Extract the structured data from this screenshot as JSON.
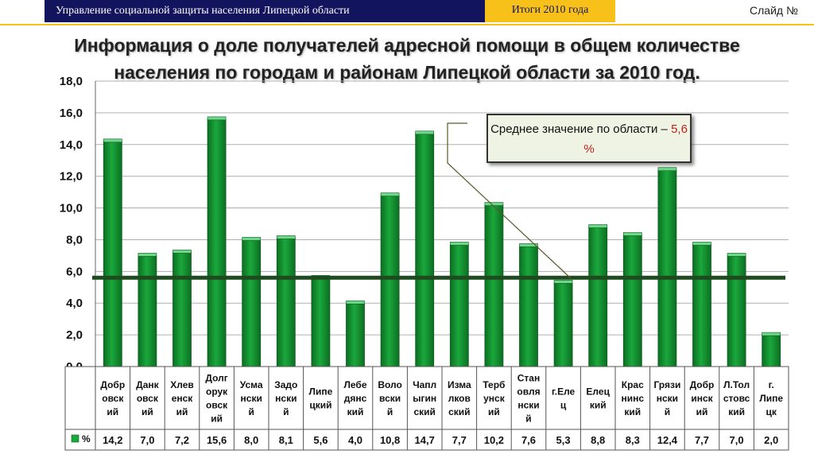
{
  "header": {
    "organization": "Управление социальной защиты населения Липецкой области",
    "period": "Итоги 2010 года",
    "slide_label": "Слайд №"
  },
  "title": "Информация о доле получателей адресной помощи в общем количестве населения по городам и районам Липецкой области за 2010 год.",
  "callout": {
    "text": "Среднее значение по области –",
    "value": "5,6 %"
  },
  "colors": {
    "bar": "#1aa83c",
    "bar_dark": "#0c6e22",
    "average_line": "#1f4a20",
    "header_bg": "#13145e",
    "header_accent": "#f7c11a",
    "callout_value": "#c0201c"
  },
  "chart_data": {
    "type": "bar",
    "categories": [
      "Добровский",
      "Данковский",
      "Хлевенский",
      "Долгоруковский",
      "Усманский",
      "Задонский",
      "Липецкий",
      "Лебедянский",
      "Воловский",
      "Чаплыгинский",
      "Измалковский",
      "Тербунский",
      "Становлянский",
      "г.Елец",
      "Елецкий",
      "Краснинский",
      "Грязинский",
      "Добринский",
      "Л.Толстовский",
      "г. Липецк"
    ],
    "category_display": [
      "Добр\nовск\nий",
      "Данк\nовск\nий",
      "Хлев\nенск\nий",
      "Долг\nорук\nовск\nий",
      "Усма\nнски\nй",
      "Задо\nнски\nй",
      "Липе\nцкий",
      "Лебе\nдянс\nкий",
      "Воло\nвски\nй",
      "Чапл\nыгин\nский",
      "Изма\nлков\nский",
      "Терб\nунск\nий",
      "Стан\nовля\nнски\nй",
      "г.Еле\nц",
      "Елец\nкий",
      "Крас\nнинс\nкий",
      "Грязи\nнски\nй",
      "Добр\nинск\nий",
      "Л.Тол\nстовс\nкий",
      "г.\nЛипе\nцк"
    ],
    "series": [
      {
        "name": "%",
        "values": [
          14.2,
          7.0,
          7.2,
          15.6,
          8.0,
          8.1,
          5.6,
          4.0,
          10.8,
          14.7,
          7.7,
          10.2,
          7.6,
          5.3,
          8.8,
          8.3,
          12.4,
          7.7,
          7.0,
          2.0
        ]
      }
    ],
    "value_labels": [
      "14,2",
      "7,0",
      "7,2",
      "15,6",
      "8,0",
      "8,1",
      "5,6",
      "4,0",
      "10,8",
      "14,7",
      "7,7",
      "10,2",
      "7,6",
      "5,3",
      "8,8",
      "8,3",
      "12,4",
      "7,7",
      "7,0",
      "2,0"
    ],
    "average": 5.6,
    "ylim": [
      0,
      18
    ],
    "yticks": [
      "0,0",
      "2,0",
      "4,0",
      "6,0",
      "8,0",
      "10,0",
      "12,0",
      "14,0",
      "16,0",
      "18,0"
    ],
    "xlabel": "",
    "ylabel": "",
    "grid": true,
    "legend": "data table"
  }
}
